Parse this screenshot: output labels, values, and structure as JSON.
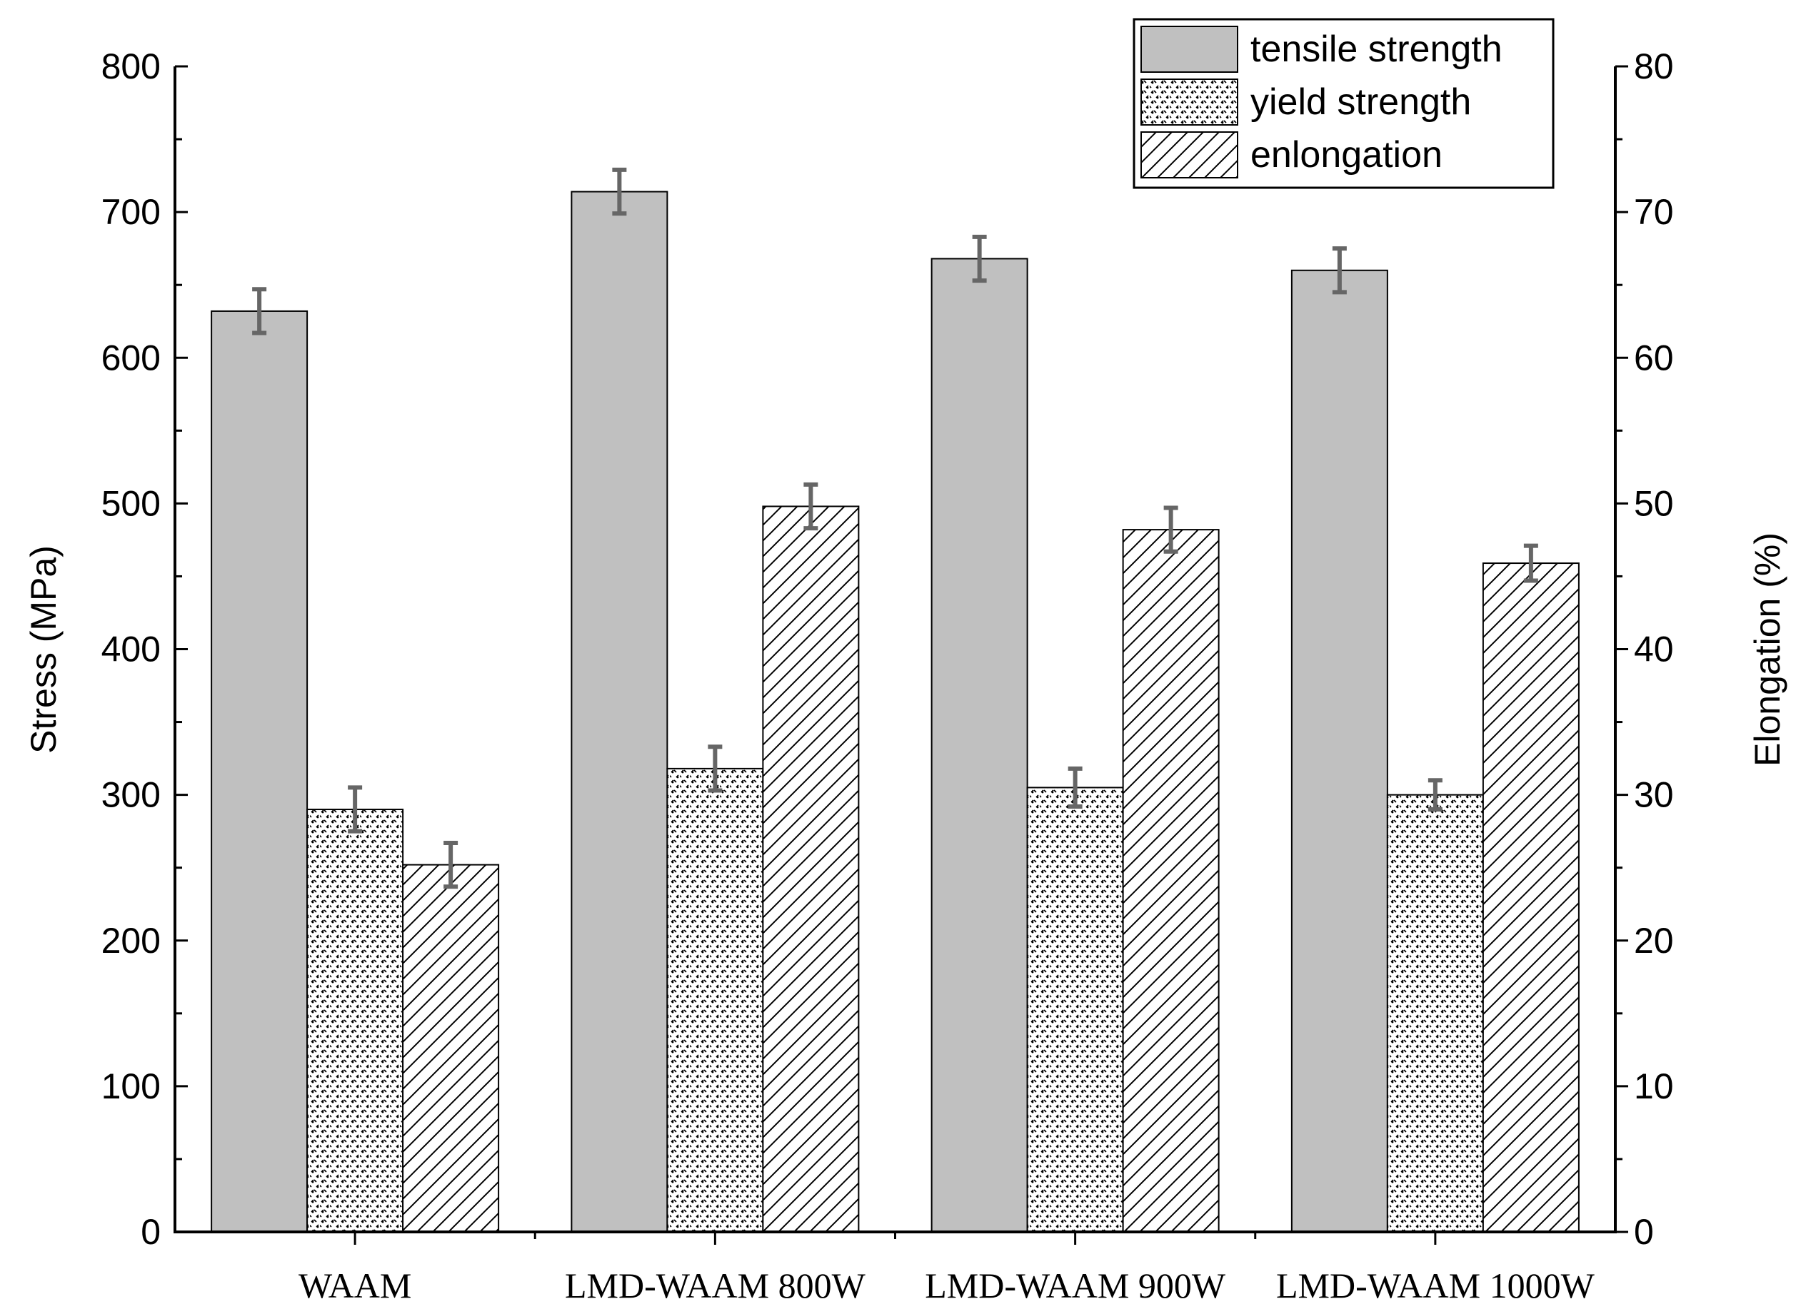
{
  "chart_data": {
    "type": "bar",
    "categories": [
      "WAAM",
      "LMD-WAAM 800W",
      "LMD-WAAM 900W",
      "LMD-WAAM 1000W"
    ],
    "series": [
      {
        "name": "tensile strength",
        "axis": "left",
        "values": [
          632,
          714,
          668,
          660
        ],
        "errors": [
          15,
          15,
          15,
          15
        ],
        "color": "#c0c0c0"
      },
      {
        "name": "yield strength",
        "axis": "left",
        "values": [
          290,
          318,
          305,
          300
        ],
        "errors": [
          15,
          15,
          13,
          10
        ],
        "color": "#ffffff"
      },
      {
        "name": "enlongation",
        "axis": "right",
        "values": [
          25.2,
          49.8,
          48.2,
          45.9
        ],
        "errors": [
          1.5,
          1.5,
          1.5,
          1.2
        ],
        "color": "#ffffff"
      }
    ],
    "ylabel": "Stress (MPa)",
    "ylabel_right": "Elongation (%)",
    "ylim": [
      0,
      800
    ],
    "ylim_right": [
      0,
      80
    ],
    "yticks": [
      "0",
      "100",
      "200",
      "300",
      "400",
      "500",
      "600",
      "700",
      "800"
    ],
    "yticks_right": [
      "0",
      "10",
      "20",
      "30",
      "40",
      "50",
      "60",
      "70",
      "80"
    ],
    "legend_position": "top-right",
    "error_bar_color": "#666666"
  }
}
